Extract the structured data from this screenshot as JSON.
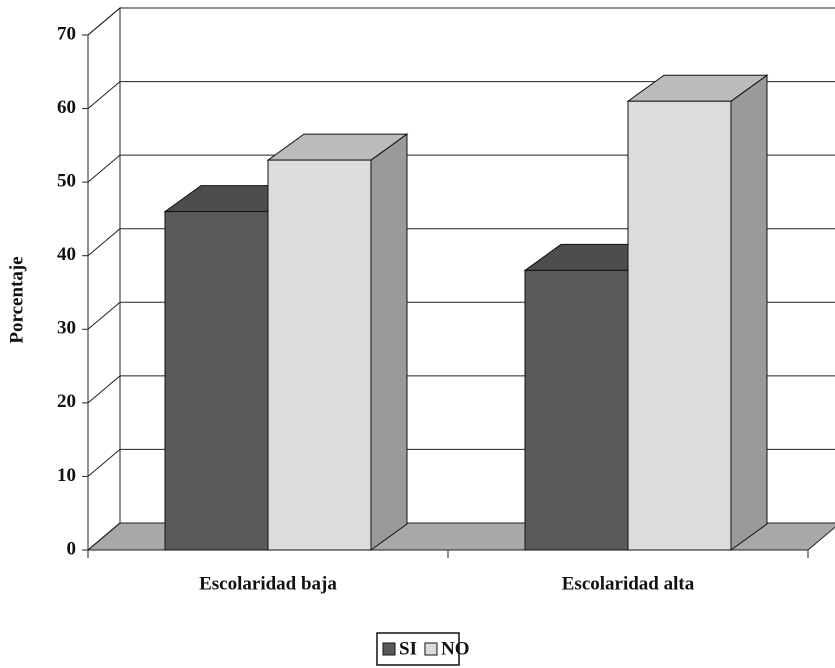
{
  "chart_data": {
    "type": "bar3d",
    "categories": [
      "Escolaridad baja",
      "Escolaridad alta"
    ],
    "series": [
      {
        "name": "SI",
        "color": "#5a5a5a",
        "values": [
          46,
          38
        ]
      },
      {
        "name": "NO",
        "color": "#dcdcdc",
        "values": [
          53,
          61
        ]
      }
    ],
    "ylabel": "Porcentaje",
    "ylim": [
      0,
      70
    ],
    "yticks": [
      0,
      10,
      20,
      30,
      40,
      50,
      60,
      70
    ],
    "grid": true,
    "legend": "bottom"
  }
}
